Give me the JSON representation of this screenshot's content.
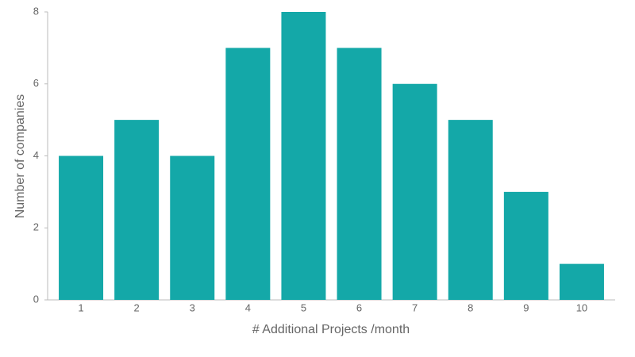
{
  "chart_data": {
    "type": "bar",
    "categories": [
      "1",
      "2",
      "3",
      "4",
      "5",
      "6",
      "7",
      "8",
      "9",
      "10"
    ],
    "values": [
      4,
      5,
      4,
      7,
      8,
      7,
      6,
      5,
      3,
      1
    ],
    "color": "#14a8a8",
    "xlabel": "# Additional Projects /month",
    "ylabel": "Number of companies",
    "ylim": [
      0,
      8
    ],
    "yticks": [
      0,
      2,
      4,
      6,
      8
    ],
    "grid": false
  }
}
